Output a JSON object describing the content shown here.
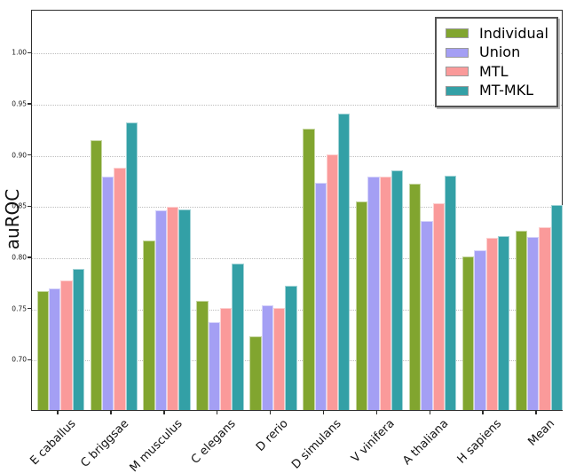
{
  "chart_data": {
    "type": "bar",
    "title": "",
    "xlabel": "",
    "ylabel": "auROC",
    "categories": [
      "E caballus",
      "C briggsae",
      "M musculus",
      "C elegans",
      "D rerio",
      "D simulans",
      "V vinifera",
      "A thaliana",
      "H sapiens",
      "Mean"
    ],
    "series": [
      {
        "name": "Individual",
        "color": "#81A52F",
        "values": [
          0.766,
          0.914,
          0.816,
          0.757,
          0.722,
          0.925,
          0.854,
          0.871,
          0.8,
          0.825
        ]
      },
      {
        "name": "Union",
        "color": "#A49FF4",
        "values": [
          0.769,
          0.878,
          0.845,
          0.736,
          0.752,
          0.872,
          0.878,
          0.835,
          0.806,
          0.819
        ]
      },
      {
        "name": "MTL",
        "color": "#FA9A9A",
        "values": [
          0.777,
          0.887,
          0.849,
          0.75,
          0.75,
          0.9,
          0.878,
          0.852,
          0.818,
          0.829
        ]
      },
      {
        "name": "MT-MKL",
        "color": "#33A0A6",
        "values": [
          0.788,
          0.931,
          0.846,
          0.793,
          0.771,
          0.94,
          0.884,
          0.879,
          0.82,
          0.85
        ]
      }
    ],
    "yticks": [
      0.7,
      0.75,
      0.8,
      0.85,
      0.9,
      0.95,
      1.0
    ],
    "ytick_labels": [
      "0.70",
      "0.75",
      "0.80",
      "0.85",
      "0.90",
      "0.95",
      "1.00"
    ],
    "ylim": [
      0.65,
      1.042
    ],
    "grid": "horizontal-dotted",
    "legend_position": "upper-right",
    "colors": {
      "spine": "#2e2e2e",
      "gridline": "#bdbdbd",
      "background": "#ffffff"
    }
  }
}
